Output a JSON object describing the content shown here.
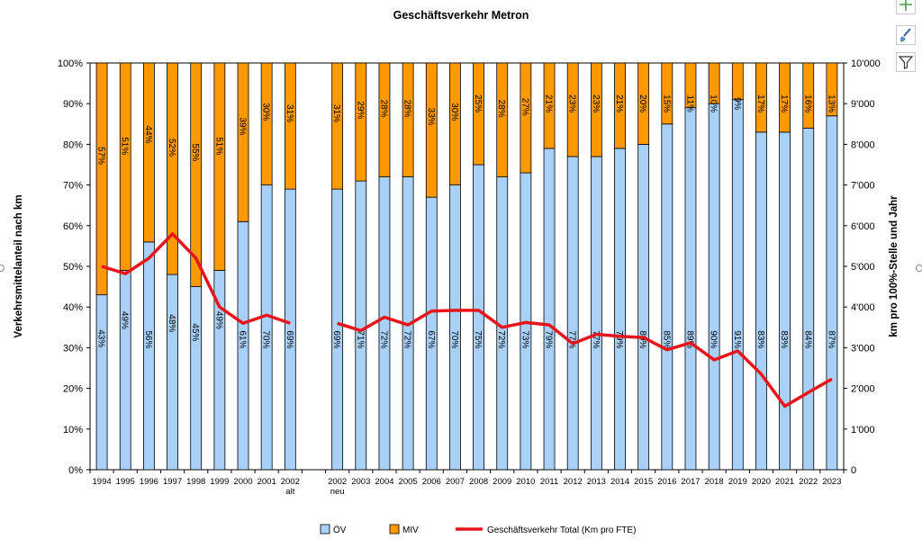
{
  "toolbar": {
    "add_icon": "plus-icon",
    "style_icon": "brush-icon",
    "filter_icon": "filter-icon"
  },
  "chart_data": {
    "type": "bar",
    "title": "Geschäftsverkehr Metron",
    "ylabel_left": "Verkehrsmittelanteil nach km",
    "ylabel_right": "km pro 100%-Stelle und Jahr",
    "stacked": true,
    "ylim_left": [
      0,
      100
    ],
    "ylim_right": [
      0,
      10000
    ],
    "left_ticks": [
      "0%",
      "10%",
      "20%",
      "30%",
      "40%",
      "50%",
      "60%",
      "70%",
      "80%",
      "90%",
      "100%"
    ],
    "right_ticks": [
      "0",
      "1'000",
      "2'000",
      "3'000",
      "4'000",
      "5'000",
      "6'000",
      "7'000",
      "8'000",
      "9'000",
      "10'000"
    ],
    "categories": [
      "1994",
      "1995",
      "1996",
      "1997",
      "1998",
      "1999",
      "2000",
      "2001",
      "2002\nalt",
      "",
      "2002\nneu",
      "2003",
      "2004",
      "2005",
      "2006",
      "2007",
      "2008",
      "2009",
      "2010",
      "2011",
      "2012",
      "2013",
      "2014",
      "2015",
      "2016",
      "2017",
      "2018",
      "2019",
      "2020",
      "2021",
      "2022",
      "2023"
    ],
    "series": [
      {
        "name": "ÖV",
        "color": "#a9d1f7",
        "values": [
          43,
          49,
          56,
          48,
          45,
          49,
          61,
          70,
          69,
          null,
          69,
          71,
          72,
          72,
          67,
          70,
          75,
          72,
          73,
          79,
          77,
          77,
          79,
          80,
          85,
          89,
          90,
          91,
          83,
          83,
          84,
          87
        ],
        "labels": [
          "43%",
          "49%",
          "56%",
          "48%",
          "45%",
          "49%",
          "61%",
          "70%",
          "69%",
          "",
          "69%",
          "71%",
          "72%",
          "72%",
          "67%",
          "70%",
          "75%",
          "72%",
          "73%",
          "79%",
          "77%",
          "77%",
          "79%",
          "80%",
          "85%",
          "89%",
          "90%",
          "91%",
          "83%",
          "83%",
          "84%",
          "87%"
        ]
      },
      {
        "name": "MIV",
        "color": "#ff9900",
        "values": [
          57,
          51,
          44,
          52,
          55,
          51,
          39,
          30,
          31,
          null,
          31,
          29,
          28,
          28,
          33,
          30,
          25,
          28,
          27,
          21,
          23,
          23,
          21,
          20,
          15,
          11,
          10,
          9,
          17,
          17,
          16,
          13
        ],
        "labels": [
          "57%",
          "51%",
          "44%",
          "52%",
          "55%",
          "51%",
          "39%",
          "30%",
          "31%",
          "",
          "31%",
          "29%",
          "28%",
          "28%",
          "33%",
          "30%",
          "25%",
          "28%",
          "27%",
          "21%",
          "23%",
          "23%",
          "21%",
          "20%",
          "15%",
          "11%",
          "10%",
          "9%",
          "17%",
          "17%",
          "16%",
          "13%"
        ]
      },
      {
        "name": "Geschäftsverkehr Total (Km pro FTE)",
        "type": "line",
        "axis": "right",
        "color": "#e8141c",
        "values": [
          5000,
          4820,
          5200,
          5800,
          5200,
          4000,
          3600,
          3800,
          3600,
          null,
          3600,
          3420,
          3750,
          3560,
          3900,
          3920,
          3920,
          3500,
          3620,
          3560,
          3100,
          3330,
          3280,
          3250,
          2950,
          3120,
          2700,
          2920,
          2350,
          1560,
          1900,
          2230
        ]
      }
    ],
    "legend_position": "bottom",
    "grid": true
  }
}
